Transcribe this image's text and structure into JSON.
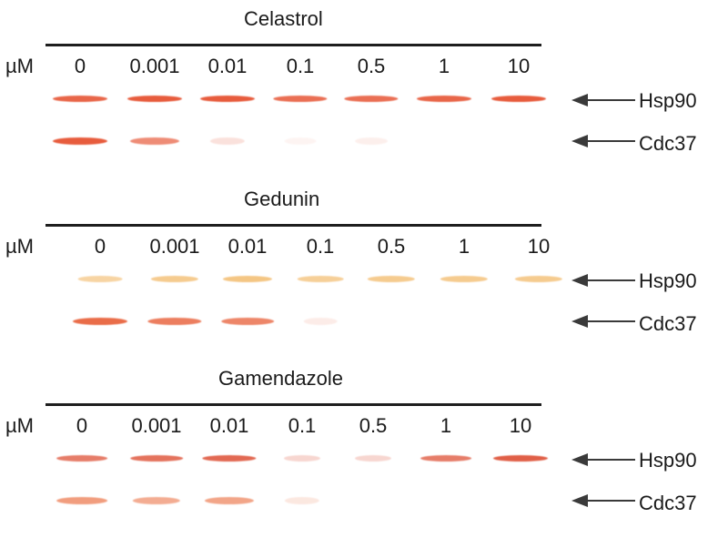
{
  "unit": "µM",
  "panels": [
    {
      "title": "Celastrol",
      "concentrations": [
        "0",
        "0.001",
        "0.01",
        "0.1",
        "0.5",
        "1",
        "10"
      ],
      "rows": [
        {
          "protein": "Hsp90",
          "intensity": [
            0.8,
            0.85,
            0.85,
            0.75,
            0.75,
            0.8,
            0.85
          ],
          "color": "#e3401c"
        },
        {
          "protein": "Cdc37",
          "intensity": [
            0.85,
            0.6,
            0.15,
            0.05,
            0.08,
            0.0,
            0.0
          ],
          "color": "#e3401c"
        }
      ]
    },
    {
      "title": "Gedunin",
      "concentrations": [
        "0",
        "0.001",
        "0.01",
        "0.1",
        "0.5",
        "1",
        "10"
      ],
      "rows": [
        {
          "protein": "Hsp90",
          "intensity": [
            0.45,
            0.55,
            0.6,
            0.5,
            0.55,
            0.55,
            0.55
          ],
          "color": "#eea134"
        },
        {
          "protein": "Cdc37",
          "intensity": [
            0.85,
            0.75,
            0.7,
            0.1,
            0.0,
            0.0,
            0.0
          ],
          "color": "#e6542a"
        }
      ]
    },
    {
      "title": "Gamendazole",
      "concentrations": [
        "0",
        "0.001",
        "0.01",
        "0.1",
        "0.5",
        "1",
        "10"
      ],
      "rows": [
        {
          "protein": "Hsp90",
          "intensity": [
            0.65,
            0.7,
            0.75,
            0.2,
            0.2,
            0.65,
            0.8
          ],
          "color": "#d9381a"
        },
        {
          "protein": "Cdc37",
          "intensity": [
            0.65,
            0.55,
            0.6,
            0.15,
            0.0,
            0.0,
            0.0
          ],
          "color": "#ea6a3a"
        }
      ]
    }
  ]
}
